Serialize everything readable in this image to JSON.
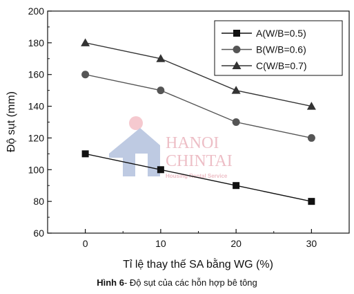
{
  "chart_data": {
    "type": "line",
    "x": [
      0,
      10,
      20,
      30
    ],
    "series": [
      {
        "name": "A(W/B=0.5)",
        "values": [
          110,
          100,
          90,
          80
        ],
        "color": "#111111",
        "marker": "square"
      },
      {
        "name": "B(W/B=0.6)",
        "values": [
          160,
          150,
          130,
          120
        ],
        "color": "#555555",
        "marker": "circle"
      },
      {
        "name": "C(W/B=0.7)",
        "values": [
          180,
          170,
          150,
          140
        ],
        "color": "#333333",
        "marker": "triangle"
      }
    ],
    "xlabel": "Tỉ lệ thay thế SA bằng WG (%)",
    "ylabel": "Độ sụt (mm)",
    "xlim": [
      -5,
      35
    ],
    "ylim": [
      60,
      200
    ],
    "xticks": [
      0,
      10,
      20,
      30
    ],
    "yticks": [
      60,
      80,
      100,
      120,
      140,
      160,
      180,
      200
    ],
    "grid": false,
    "legend_position": "top-right"
  },
  "caption": {
    "label": "Hình 6",
    "text": "- Độ sụt của các hỗn hợp bê tông"
  },
  "watermark": {
    "line1": "HANOI",
    "line2": "CHINTAI",
    "line3": "Housing Rental Service"
  }
}
